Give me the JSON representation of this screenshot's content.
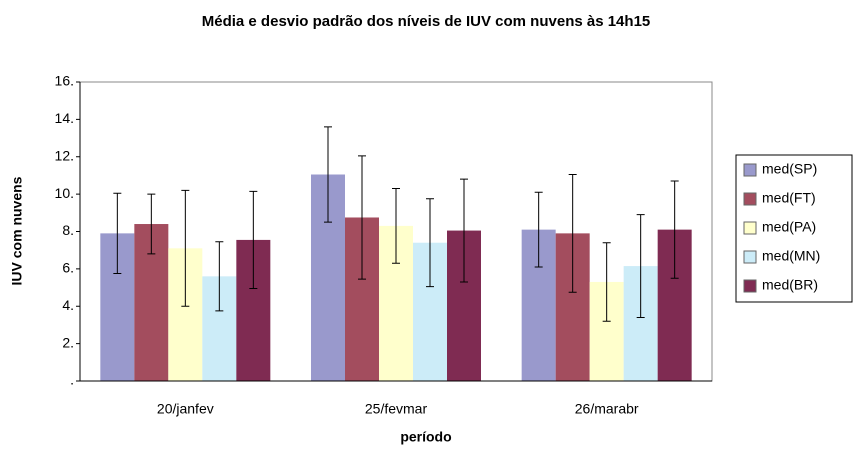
{
  "chart_data": {
    "type": "bar",
    "title": "Média e desvio padrão dos níveis de IUV com nuvens às 14h15",
    "x_label": "período",
    "y_label": "IUV com nuvens",
    "categories": [
      "20/janfev",
      "25/fevmar",
      "26/marabr"
    ],
    "series": [
      {
        "name": "med(SP)",
        "color": "#9999cc",
        "values": [
          7.9,
          11.05,
          8.1
        ],
        "errors": [
          2.15,
          2.55,
          2.0
        ]
      },
      {
        "name": "med(FT)",
        "color": "#a34d5e",
        "values": [
          8.4,
          8.75,
          7.9
        ],
        "errors": [
          1.6,
          3.3,
          3.15
        ]
      },
      {
        "name": "med(PA)",
        "color": "#ffffcc",
        "values": [
          7.1,
          8.3,
          5.3
        ],
        "errors": [
          3.1,
          2.0,
          2.1
        ]
      },
      {
        "name": "med(MN)",
        "color": "#ccecf8",
        "values": [
          5.6,
          7.4,
          6.15
        ],
        "errors": [
          1.85,
          2.35,
          2.75
        ]
      },
      {
        "name": "med(BR)",
        "color": "#7f2b52",
        "values": [
          7.55,
          8.05,
          8.1
        ],
        "errors": [
          2.6,
          2.75,
          2.6
        ]
      }
    ],
    "ylim": [
      0,
      16
    ],
    "yticks": [
      {
        "value": 0,
        "label": "."
      },
      {
        "value": 2,
        "label": "2."
      },
      {
        "value": 4,
        "label": "4."
      },
      {
        "value": 6,
        "label": "6."
      },
      {
        "value": 8,
        "label": "8."
      },
      {
        "value": 10,
        "label": "10."
      },
      {
        "value": 12,
        "label": "12."
      },
      {
        "value": 14,
        "label": "14."
      },
      {
        "value": 16,
        "label": "16."
      }
    ],
    "grid": false,
    "legend": "right"
  }
}
